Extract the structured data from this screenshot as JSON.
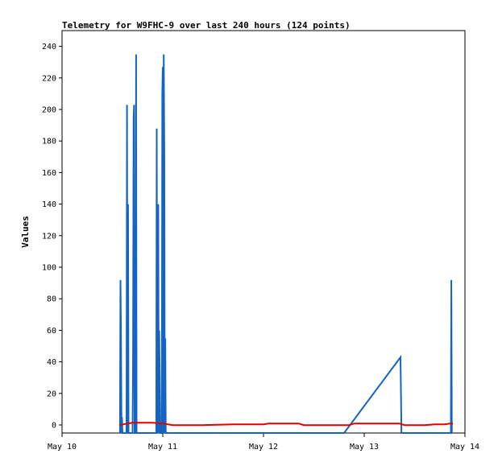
{
  "chart_data": {
    "type": "line",
    "title": "Telemetry for W9FHC-9 over last 240 hours (124 points)",
    "xlabel": "",
    "ylabel": "Values",
    "x_ticks": [
      "May 10",
      "May 11",
      "May 12",
      "May 13",
      "May 14"
    ],
    "x_tick_days": [
      10,
      11,
      12,
      13,
      14
    ],
    "xlim": [
      10,
      14
    ],
    "ylim": [
      0,
      255
    ],
    "y_ticks": [
      0,
      20,
      40,
      60,
      80,
      100,
      120,
      140,
      160,
      180,
      200,
      220,
      240
    ],
    "grid": false,
    "colors": {
      "frame": "#000000",
      "zero_line": "#000000"
    },
    "series": [
      {
        "color": "#1565c0",
        "x": [
          10.575,
          10.58,
          10.585,
          10.59,
          10.595,
          10.6,
          10.64,
          10.645,
          10.65,
          10.655,
          10.66,
          10.665,
          10.7,
          10.705,
          10.71,
          10.715,
          10.72,
          10.725,
          10.73,
          10.735,
          10.74,
          10.745,
          10.75,
          10.755,
          10.76,
          10.765,
          10.935,
          10.94,
          10.945,
          10.95,
          10.955,
          10.96,
          10.965,
          10.97,
          10.975,
          10.98,
          10.985,
          10.99,
          10.995,
          11.0,
          11.005,
          11.01,
          11.015,
          11.02,
          11.025,
          11.03,
          11.035,
          11.04,
          11.045,
          11.05,
          11.055,
          11.06,
          11.065,
          11.07,
          11.075,
          11.08,
          11.085,
          12.8,
          13.36,
          13.365,
          13.37,
          13.375,
          13.38,
          13.385,
          13.86,
          13.865,
          13.87,
          13.875
        ],
        "y": [
          0,
          97,
          65,
          0,
          10,
          0,
          0,
          208,
          0,
          145,
          0,
          0,
          0,
          48,
          200,
          208,
          0,
          0,
          0,
          240,
          0,
          0,
          0,
          0,
          0,
          0,
          0,
          193,
          0,
          57,
          145,
          0,
          65,
          32,
          0,
          0,
          0,
          0,
          215,
          232,
          0,
          240,
          180,
          0,
          60,
          0,
          0,
          0,
          0,
          0,
          0,
          0,
          0,
          0,
          0,
          0,
          0,
          0,
          48,
          25,
          0,
          0,
          0,
          0,
          0,
          97,
          0,
          0
        ]
      },
      {
        "color": "#e00000",
        "x": [
          10.57,
          10.65,
          10.7,
          10.9,
          11.0,
          11.1,
          11.4,
          11.7,
          12.0,
          12.05,
          12.2,
          12.35,
          12.4,
          12.7,
          12.85,
          12.9,
          13.2,
          13.35,
          13.4,
          13.6,
          13.7,
          13.8,
          13.85,
          13.88
        ],
        "y": [
          5,
          6,
          6.5,
          6.5,
          6,
          5,
          5,
          5.5,
          5.5,
          6,
          6,
          6,
          5,
          5,
          5,
          6,
          6,
          6,
          5,
          5,
          5.5,
          5.5,
          6,
          6
        ]
      }
    ]
  }
}
